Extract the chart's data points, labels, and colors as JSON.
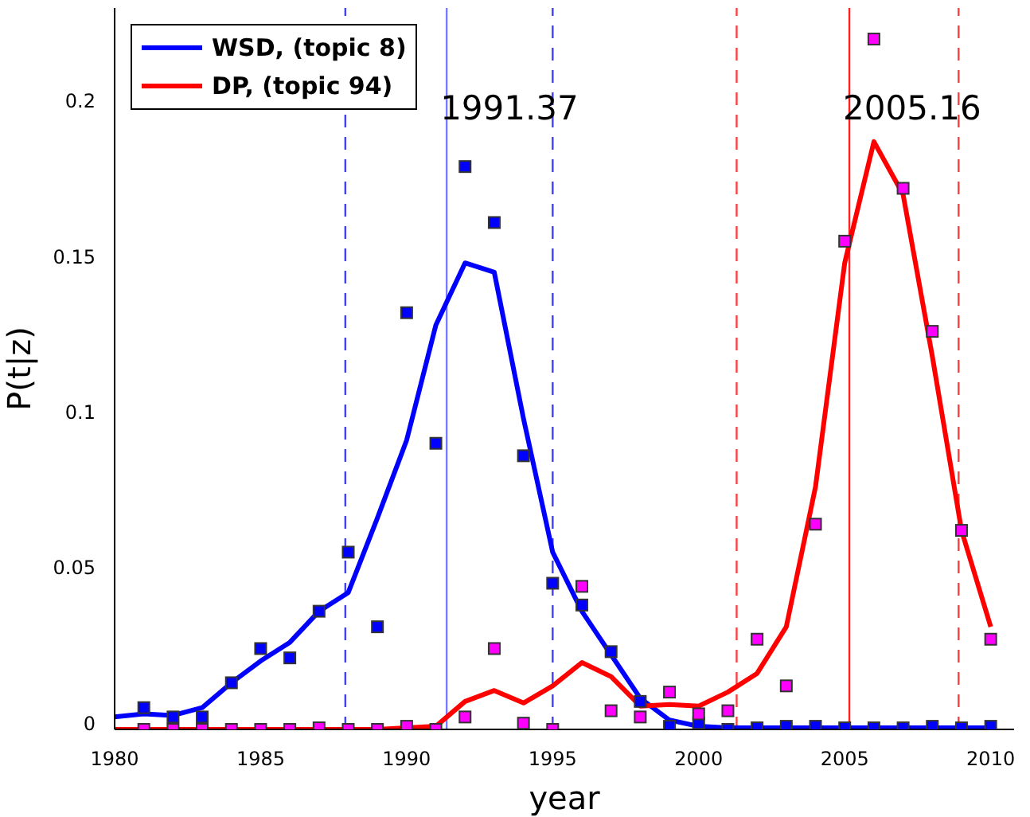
{
  "chart_data": {
    "type": "line",
    "xlabel": "year",
    "ylabel": "P(t|z)",
    "xlim": [
      1980,
      2010.8
    ],
    "ylim": [
      0,
      0.232
    ],
    "xticks": [
      1980,
      1985,
      1990,
      1995,
      2000,
      2005,
      2010
    ],
    "yticks": [
      0,
      0.05,
      0.1,
      0.15,
      0.2
    ],
    "grid": false,
    "legend": "top left",
    "series": [
      {
        "name": "WSD, (topic 8)",
        "color": "#0000ff",
        "x": [
          1980,
          1981,
          1982,
          1983,
          1984,
          1985,
          1986,
          1987,
          1988,
          1989,
          1990,
          1991,
          1992,
          1993,
          1994,
          1995,
          1996,
          1997,
          1998,
          1999,
          2000,
          2001,
          2002,
          2003,
          2004,
          2005,
          2006,
          2007,
          2008,
          2009,
          2010
        ],
        "values": [
          0.004,
          0.005,
          0.0045,
          0.007,
          0.015,
          0.022,
          0.028,
          0.038,
          0.044,
          0.068,
          0.093,
          0.13,
          0.15,
          0.147,
          0.1,
          0.057,
          0.038,
          0.024,
          0.01,
          0.003,
          0.001,
          0.0005,
          0.0005,
          0.0005,
          0.0005,
          0.0005,
          0.0005,
          0.0005,
          0.0005,
          0.0005,
          0.0005
        ]
      },
      {
        "name": "DP, (topic 94)",
        "color": "#ff0000",
        "x": [
          1980,
          1981,
          1982,
          1983,
          1984,
          1985,
          1986,
          1987,
          1988,
          1989,
          1990,
          1991,
          1992,
          1993,
          1994,
          1995,
          1996,
          1997,
          1998,
          1999,
          2000,
          2001,
          2002,
          2003,
          2004,
          2005,
          2006,
          2007,
          2008,
          2009,
          2010
        ],
        "values": [
          0,
          0,
          0,
          0,
          0,
          0,
          0,
          0,
          0,
          0,
          0.0005,
          0.001,
          0.009,
          0.0125,
          0.0085,
          0.014,
          0.0215,
          0.017,
          0.0075,
          0.008,
          0.0075,
          0.012,
          0.018,
          0.033,
          0.078,
          0.15,
          0.189,
          0.172,
          0.12,
          0.064,
          0.033
        ]
      },
      {
        "type": "scatter",
        "color": "#0000ff",
        "marker": "square",
        "x": [
          1981,
          1982,
          1983,
          1984,
          1985,
          1986,
          1987,
          1988,
          1989,
          1990,
          1991,
          1992,
          1993,
          1994,
          1995,
          1996,
          1997,
          1998,
          1999,
          2000,
          2001,
          2002,
          2003,
          2004,
          2005,
          2006,
          2007,
          2008,
          2009,
          2010
        ],
        "values": [
          0.007,
          0.004,
          0.004,
          0.015,
          0.026,
          0.023,
          0.038,
          0.057,
          0.033,
          0.134,
          0.092,
          0.181,
          0.163,
          0.088,
          0.047,
          0.04,
          0.025,
          0.009,
          0.001,
          0.002,
          0,
          0.0005,
          0.001,
          0.001,
          0.0005,
          0.0005,
          0.0005,
          0.001,
          0.0005,
          0.001
        ]
      },
      {
        "type": "scatter",
        "color": "#ff00ff",
        "marker": "square",
        "x": [
          1981,
          1982,
          1983,
          1984,
          1985,
          1986,
          1987,
          1988,
          1989,
          1990,
          1991,
          1992,
          1993,
          1994,
          1995,
          1996,
          1997,
          1998,
          1999,
          2000,
          2001,
          2002,
          2003,
          2004,
          2005,
          2006,
          2007,
          2008,
          2009,
          2010
        ],
        "values": [
          0,
          0,
          0,
          0,
          0,
          0,
          0.0005,
          0,
          0,
          0.001,
          0,
          0.004,
          0.026,
          0.002,
          0,
          0.046,
          0.006,
          0.004,
          0.012,
          0.005,
          0.006,
          0.029,
          0.014,
          0.066,
          0.157,
          0.222,
          0.174,
          0.128,
          0.064,
          0.029
        ]
      }
    ],
    "ref_lines": [
      {
        "axis": "x",
        "value": 1991.37,
        "label": "1991.37",
        "color": "#7a7aff",
        "line_style": "solid"
      },
      {
        "axis": "x",
        "value": 2005.16,
        "label": "2005.16",
        "color": "#ff2020",
        "line_style": "solid"
      },
      {
        "axis": "x",
        "value": 1987.9,
        "color": "#4040ff",
        "line_style": "dashed"
      },
      {
        "axis": "x",
        "value": 1995,
        "color": "#4040ff",
        "line_style": "dashed"
      },
      {
        "axis": "x",
        "value": 2001.3,
        "color": "#ff4040",
        "line_style": "dashed"
      },
      {
        "axis": "x",
        "value": 2008.9,
        "color": "#ff4040",
        "line_style": "dashed"
      }
    ]
  }
}
